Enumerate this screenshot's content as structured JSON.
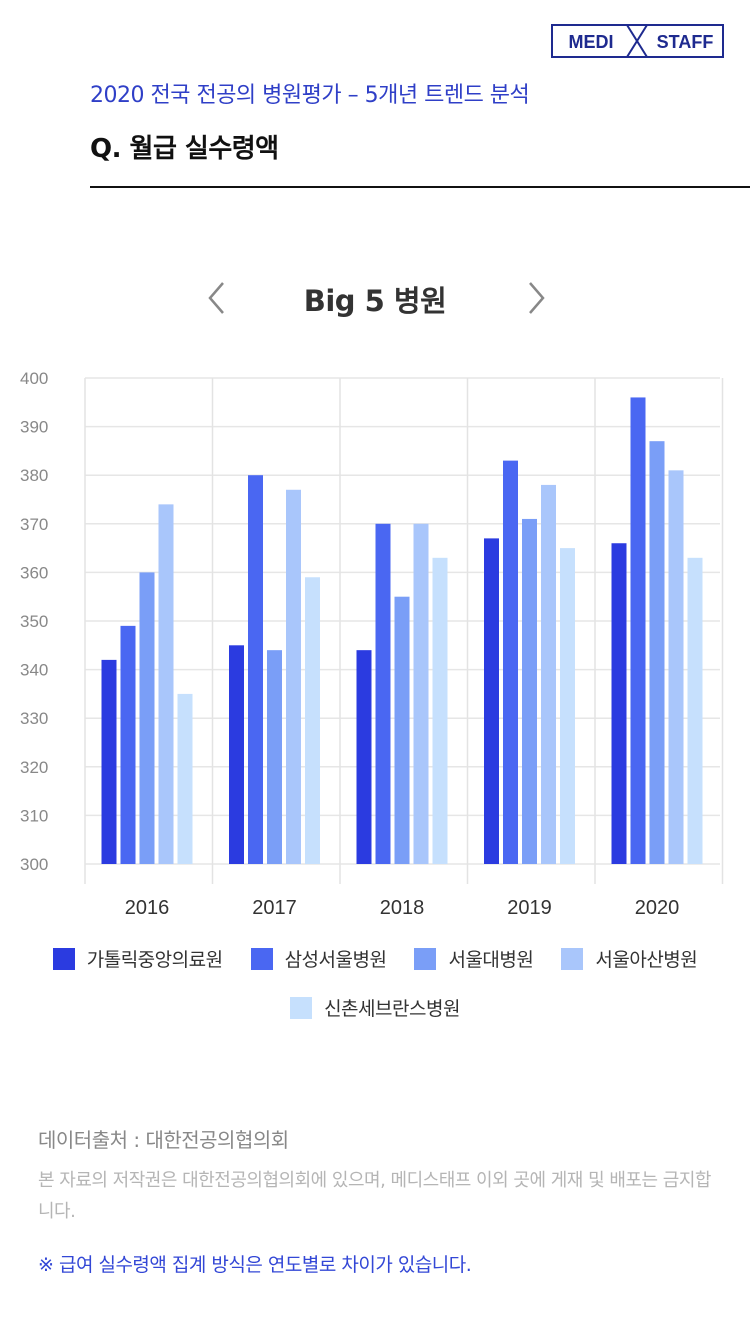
{
  "logo": {
    "left_text": "MEDI",
    "right_text": "STAFF",
    "color": "#1e2a8f"
  },
  "header": {
    "subtitle": "2020 전국 전공의 병원평가 – 5개년 트렌드 분석",
    "title": "Q. 월급 실수령액"
  },
  "nav": {
    "prev_icon": "chevron-left-icon",
    "next_icon": "chevron-right-icon"
  },
  "chart_data": {
    "type": "bar",
    "title": "Big 5 병원",
    "categories": [
      "2016",
      "2017",
      "2018",
      "2019",
      "2020"
    ],
    "ylim": [
      300,
      400
    ],
    "yticks": [
      300,
      310,
      320,
      330,
      340,
      350,
      360,
      370,
      380,
      390,
      400
    ],
    "grid": true,
    "legend_position": "bottom",
    "series": [
      {
        "name": "가톨릭중앙의료원",
        "color": "#2b3be0",
        "values": [
          342,
          345,
          344,
          367,
          366
        ]
      },
      {
        "name": "삼성서울병원",
        "color": "#4a67f2",
        "values": [
          349,
          380,
          370,
          383,
          396
        ]
      },
      {
        "name": "서울대병원",
        "color": "#7a9ef7",
        "values": [
          360,
          344,
          355,
          371,
          387
        ]
      },
      {
        "name": "서울아산병원",
        "color": "#a9c6fb",
        "values": [
          374,
          377,
          370,
          378,
          381
        ]
      },
      {
        "name": "신촌세브란스병원",
        "color": "#c6e0fd",
        "values": [
          335,
          359,
          363,
          365,
          363
        ]
      }
    ]
  },
  "footer": {
    "source": "데이터출처 : 대한전공의협의회",
    "copyright": "본 자료의 저작권은 대한전공의협의회에 있으며, 메디스태프 이외 곳에 게재 및 배포는 금지합니다.",
    "note": "※ 급여 실수령액 집계 방식은 연도별로 차이가 있습니다."
  }
}
